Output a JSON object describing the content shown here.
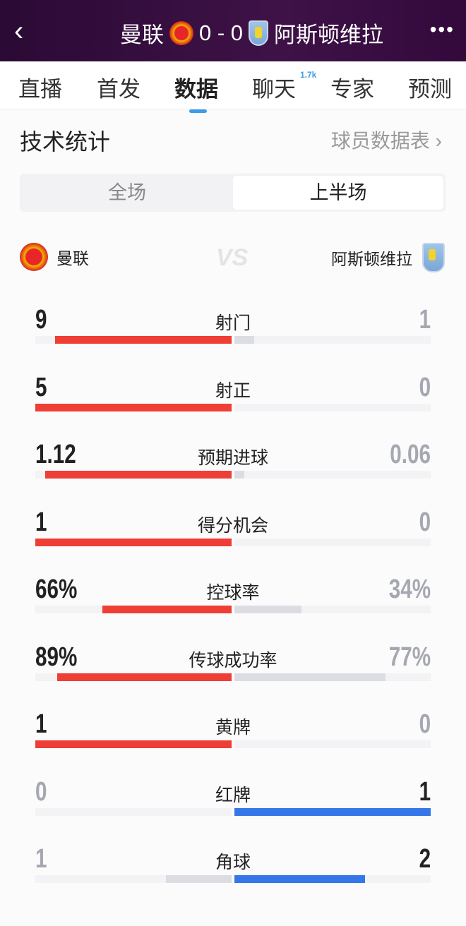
{
  "header": {
    "back_icon": "chevron-left-icon",
    "home_team": "曼联",
    "score": "0 - 0",
    "away_team": "阿斯顿维拉",
    "more_icon": "ellipsis-icon"
  },
  "tabs": [
    {
      "label": "直播"
    },
    {
      "label": "首发"
    },
    {
      "label": "数据",
      "active": true
    },
    {
      "label": "聊天",
      "badge": "1.7k"
    },
    {
      "label": "专家"
    },
    {
      "label": "预测"
    }
  ],
  "section": {
    "title": "技术统计",
    "player_link": "球员数据表 ›"
  },
  "period_toggle": {
    "options": [
      "全场",
      "上半场"
    ],
    "selected": "上半场"
  },
  "teams": {
    "home": "曼联",
    "vs": "VS",
    "away": "阿斯顿维拉"
  },
  "colors": {
    "home": "#ef3e36",
    "away": "#3576e8",
    "lose_bar": "#dcdde2",
    "header_bg": "#3a1043",
    "tab_accent": "#3d9be9"
  },
  "stats": [
    {
      "label": "射门",
      "home": "9",
      "away": "1",
      "home_val": 9,
      "away_val": 1
    },
    {
      "label": "射正",
      "home": "5",
      "away": "0",
      "home_val": 5,
      "away_val": 0
    },
    {
      "label": "预期进球",
      "home": "1.12",
      "away": "0.06",
      "home_val": 1.12,
      "away_val": 0.06
    },
    {
      "label": "得分机会",
      "home": "1",
      "away": "0",
      "home_val": 1,
      "away_val": 0
    },
    {
      "label": "控球率",
      "home": "66%",
      "away": "34%",
      "home_val": 66,
      "away_val": 34,
      "percent": true
    },
    {
      "label": "传球成功率",
      "home": "89%",
      "away": "77%",
      "home_val": 89,
      "away_val": 77,
      "percent": true
    },
    {
      "label": "黄牌",
      "home": "1",
      "away": "0",
      "home_val": 1,
      "away_val": 0
    },
    {
      "label": "红牌",
      "home": "0",
      "away": "1",
      "home_val": 0,
      "away_val": 1
    },
    {
      "label": "角球",
      "home": "1",
      "away": "2",
      "home_val": 1,
      "away_val": 2
    }
  ]
}
